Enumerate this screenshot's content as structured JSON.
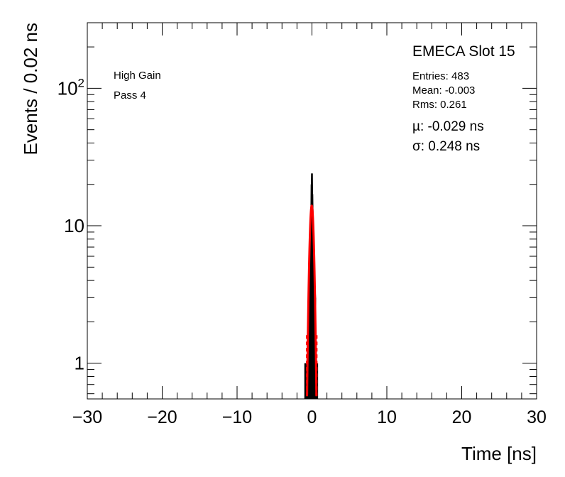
{
  "chart_data": {
    "type": "histogram",
    "title": "",
    "xlabel": "Time [ns]",
    "ylabel": "Events / 0.02 ns",
    "xlim": [
      -30,
      30
    ],
    "ylim": [
      0.55,
      300
    ],
    "yscale": "log",
    "x_ticks": [
      "−30",
      "−20",
      "−10",
      "0",
      "10",
      "20",
      "30"
    ],
    "x_tick_values": [
      -30,
      -20,
      -10,
      0,
      10,
      20,
      30
    ],
    "y_ticks": [
      "1",
      "10",
      "10^2"
    ],
    "y_tick_values": [
      1,
      10,
      100
    ],
    "grid": false,
    "histogram": {
      "color": "#000000",
      "bins": [
        {
          "x": -0.9,
          "y": 1
        },
        {
          "x": -0.8,
          "y": 1
        },
        {
          "x": -0.6,
          "y": 1
        },
        {
          "x": -0.45,
          "y": 3
        },
        {
          "x": -0.35,
          "y": 4
        },
        {
          "x": -0.25,
          "y": 7
        },
        {
          "x": -0.15,
          "y": 10
        },
        {
          "x": -0.05,
          "y": 20
        },
        {
          "x": 0.0,
          "y": 24
        },
        {
          "x": 0.05,
          "y": 17
        },
        {
          "x": 0.15,
          "y": 11
        },
        {
          "x": 0.25,
          "y": 6
        },
        {
          "x": 0.35,
          "y": 4
        },
        {
          "x": 0.45,
          "y": 3
        },
        {
          "x": 0.55,
          "y": 1
        },
        {
          "x": 0.7,
          "y": 1
        }
      ]
    },
    "fit": {
      "type": "gaussian",
      "color": "#ff0000",
      "amplitude": 14,
      "mu": -0.029,
      "sigma": 0.248
    }
  },
  "legend": {
    "slot_title": "EMECA Slot 15",
    "entries": "Entries: 483",
    "mean": "Mean: -0.003",
    "rms": "Rms: 0.261",
    "mu_fit": "µ: -0.029 ns",
    "sigma_fit": "σ: 0.248 ns"
  },
  "pad_labels": {
    "gain": "High Gain",
    "pass": "Pass 4"
  }
}
